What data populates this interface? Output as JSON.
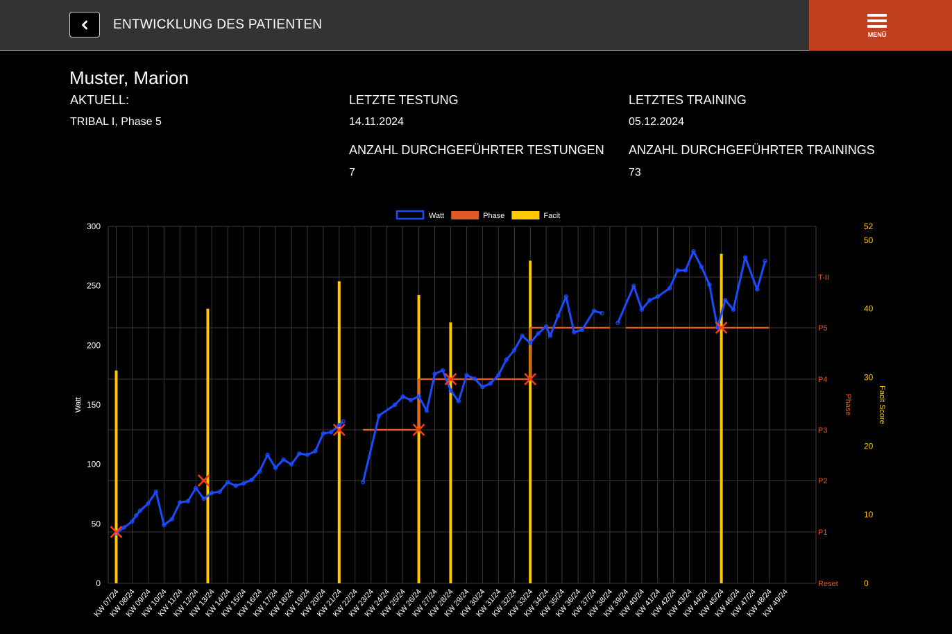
{
  "header": {
    "title": "ENTWICKLUNG DES PATIENTEN",
    "menu_label": "MENÜ",
    "back_icon": "chevron-left-icon",
    "menu_icon": "hamburger-icon",
    "bar_color": "#333333",
    "menu_color": "#c1401d"
  },
  "patient": {
    "name": "Muster, Marion",
    "current_label": "AKTUELL:",
    "current_value": "TRIBAL I, Phase 5",
    "last_test_label": "LETZTE TESTUNG",
    "last_test_value": "14.11.2024",
    "last_training_label": "LETZTES TRAINING",
    "last_training_value": "05.12.2024",
    "test_count_label": "ANZAHL DURCHGEFÜHRTER TESTUNGEN",
    "test_count_value": "7",
    "training_count_label": "ANZAHL DURCHGEFÜHRTER TRAININGS",
    "training_count_value": "73"
  },
  "chart_data": {
    "type": "line",
    "legend": [
      {
        "name": "Watt",
        "color": "#1a4bff",
        "style": "outline"
      },
      {
        "name": "Phase",
        "color": "#e05a25",
        "style": "filled"
      },
      {
        "name": "Facit",
        "color": "#ffc800",
        "style": "filled"
      }
    ],
    "legend_position": "top",
    "grid": true,
    "y_left": {
      "label": "Watt",
      "range": [
        0,
        300
      ],
      "ticks": [
        0,
        50,
        100,
        150,
        200,
        250,
        300
      ]
    },
    "y_right_phase": {
      "label": "Phase",
      "ticks": [
        "Reset",
        "P1",
        "P2",
        "P3",
        "P4",
        "P5",
        "T-II"
      ]
    },
    "y_right_facit": {
      "label": "Facit Score",
      "range": [
        0,
        52
      ],
      "ticks": [
        0,
        10,
        20,
        30,
        40,
        50,
        52
      ]
    },
    "weeks": [
      "KW 07/24",
      "KW 08/24",
      "KW 09/24",
      "KW 10/24",
      "KW 11/24",
      "KW 12/24",
      "KW 13/24",
      "KW 14/24",
      "KW 15/24",
      "KW 16/24",
      "KW 17/24",
      "KW 18/24",
      "KW 19/24",
      "KW 20/24",
      "KW 21/24",
      "KW 22/24",
      "KW 23/24",
      "KW 24/24",
      "KW 25/24",
      "KW 26/24",
      "KW 27/24",
      "KW 28/24",
      "KW 29/24",
      "KW 30/24",
      "KW 31/24",
      "KW 32/24",
      "KW 33/24",
      "KW 34/24",
      "KW 35/24",
      "KW 36/24",
      "KW 37/24",
      "KW 38/24",
      "KW 39/24",
      "KW 40/24",
      "KW 41/24",
      "KW 42/24",
      "KW 43/24",
      "KW 44/24",
      "KW 45/24",
      "KW 46/24",
      "KW 47/24",
      "KW 48/24",
      "KW 49/24"
    ],
    "watt_segments": [
      [
        [
          0,
          42
        ],
        [
          0.5,
          47
        ],
        [
          1,
          52
        ],
        [
          1.25,
          57
        ],
        [
          1.5,
          61
        ],
        [
          2,
          67
        ],
        [
          2.5,
          77
        ],
        [
          3,
          49
        ],
        [
          3.5,
          54
        ],
        [
          4,
          68
        ],
        [
          4.5,
          69
        ],
        [
          5,
          80
        ],
        [
          5.5,
          71
        ],
        [
          6,
          76
        ],
        [
          6.5,
          77
        ],
        [
          7,
          85
        ],
        [
          7.5,
          82
        ],
        [
          8,
          84
        ],
        [
          8.5,
          87
        ],
        [
          9,
          94
        ],
        [
          9.5,
          108
        ],
        [
          10,
          97
        ],
        [
          10.5,
          104
        ],
        [
          11,
          100
        ],
        [
          11.5,
          109
        ],
        [
          12,
          108
        ],
        [
          12.5,
          111
        ],
        [
          13,
          126
        ],
        [
          13.5,
          127
        ],
        [
          14,
          133
        ],
        [
          14.25,
          136
        ]
      ],
      [
        [
          15.5,
          85
        ],
        [
          16.5,
          141
        ],
        [
          17.5,
          150
        ],
        [
          18,
          157
        ],
        [
          18.5,
          154
        ],
        [
          19,
          157
        ],
        [
          19.5,
          145
        ],
        [
          20,
          176
        ],
        [
          20.5,
          179
        ],
        [
          21,
          162
        ],
        [
          21.5,
          153
        ],
        [
          22,
          175
        ],
        [
          22.5,
          172
        ],
        [
          23,
          165
        ],
        [
          23.5,
          168
        ],
        [
          24,
          175
        ],
        [
          24.5,
          188
        ],
        [
          25,
          196
        ],
        [
          25.5,
          208
        ],
        [
          26,
          202
        ],
        [
          26.5,
          210
        ],
        [
          27,
          216
        ],
        [
          27.25,
          208
        ],
        [
          27.75,
          225
        ],
        [
          28.25,
          241
        ],
        [
          28.75,
          211
        ],
        [
          29.25,
          213
        ],
        [
          30,
          229
        ],
        [
          30.5,
          227
        ]
      ],
      [
        [
          31.5,
          219
        ],
        [
          32.5,
          250
        ],
        [
          33,
          230
        ],
        [
          33.5,
          238
        ],
        [
          34,
          241
        ],
        [
          34.75,
          248
        ],
        [
          35.25,
          263
        ],
        [
          35.75,
          263
        ],
        [
          36.25,
          279
        ],
        [
          36.75,
          266
        ],
        [
          37.25,
          251
        ],
        [
          37.75,
          215
        ],
        [
          38.25,
          238
        ],
        [
          38.75,
          230
        ],
        [
          39.5,
          274
        ],
        [
          40.25,
          247
        ],
        [
          40.75,
          271
        ]
      ]
    ],
    "phase_segments": [
      {
        "from": 15.5,
        "to": 19.0,
        "phase": "P3"
      },
      {
        "from": 19.0,
        "to": 26.0,
        "phase": "P4"
      },
      {
        "from": 26.0,
        "to": 31.0,
        "phase": "P5"
      },
      {
        "from": 32.0,
        "to": 41.0,
        "phase": "P5"
      }
    ],
    "phase_markers": [
      {
        "week": 0,
        "phase": "P1"
      },
      {
        "week": 5.5,
        "phase": "P2"
      },
      {
        "week": 14,
        "phase": "P3"
      },
      {
        "week": 19,
        "phase": "P3"
      },
      {
        "week": 21,
        "phase": "P4"
      },
      {
        "week": 26,
        "phase": "P4"
      },
      {
        "week": 38,
        "phase": "P5"
      }
    ],
    "facit": [
      {
        "week": 0,
        "value": 31
      },
      {
        "week": 5.75,
        "value": 40
      },
      {
        "week": 14,
        "value": 44
      },
      {
        "week": 19,
        "value": 42
      },
      {
        "week": 21,
        "value": 38
      },
      {
        "week": 26,
        "value": 47
      },
      {
        "week": 38,
        "value": 48
      }
    ]
  }
}
